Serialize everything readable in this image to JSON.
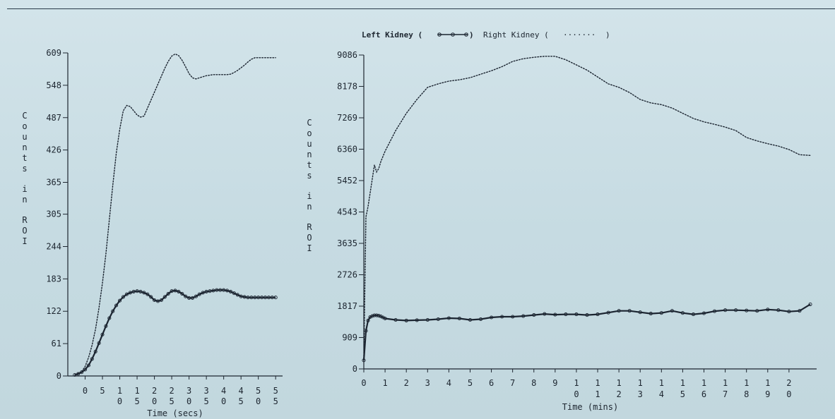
{
  "legend": {
    "left_label": "Left Kidney (",
    "left_close": ")",
    "right_label": "Right Kidney (",
    "right_symbol": "·······",
    "right_close": ")"
  },
  "colors": {
    "axis": "#1d2630",
    "left_kidney": "#1b2430",
    "right_kidney": "#1b2430",
    "background": "#c9dde4"
  },
  "chart_data": [
    {
      "type": "line",
      "xlabel": "Time (secs)",
      "ylabel": "Counts in ROI",
      "xlim": [
        -5,
        57
      ],
      "ylim": [
        0,
        609
      ],
      "yticks": [
        {
          "value": 0,
          "label": "0"
        },
        {
          "value": 61,
          "label": "61"
        },
        {
          "value": 122,
          "label": "122"
        },
        {
          "value": 183,
          "label": "183"
        },
        {
          "value": 244,
          "label": "244"
        },
        {
          "value": 305,
          "label": "305"
        },
        {
          "value": 365,
          "label": "365"
        },
        {
          "value": 426,
          "label": "426"
        },
        {
          "value": 487,
          "label": "487"
        },
        {
          "value": 548,
          "label": "548"
        },
        {
          "value": 609,
          "label": "609"
        }
      ],
      "xticks": [
        {
          "value": 0,
          "label": "0"
        },
        {
          "value": 5,
          "label": "5"
        },
        {
          "value": 10,
          "label": "10"
        },
        {
          "value": 15,
          "label": "15"
        },
        {
          "value": 20,
          "label": "20"
        },
        {
          "value": 25,
          "label": "25"
        },
        {
          "value": 30,
          "label": "30"
        },
        {
          "value": 35,
          "label": "35"
        },
        {
          "value": 40,
          "label": "40"
        },
        {
          "value": 45,
          "label": "45"
        },
        {
          "value": 50,
          "label": "50"
        },
        {
          "value": 55,
          "label": "55"
        }
      ],
      "series": [
        {
          "name": "Left Kidney",
          "style": "solid-markers",
          "x": [
            -3,
            -2,
            -1,
            0,
            1,
            2,
            3,
            4,
            5,
            6,
            7,
            8,
            9,
            10,
            11,
            12,
            13,
            14,
            15,
            16,
            17,
            18,
            19,
            20,
            21,
            22,
            23,
            24,
            25,
            26,
            27,
            28,
            29,
            30,
            31,
            32,
            33,
            34,
            35,
            36,
            37,
            38,
            39,
            40,
            41,
            42,
            43,
            44,
            45,
            46,
            47,
            48,
            49,
            50,
            51,
            52,
            53,
            54,
            55
          ],
          "y": [
            2,
            4,
            7,
            12,
            20,
            32,
            46,
            62,
            78,
            94,
            109,
            122,
            133,
            142,
            149,
            154,
            157,
            159,
            160,
            159,
            157,
            154,
            149,
            143,
            141,
            143,
            149,
            155,
            160,
            161,
            159,
            155,
            150,
            147,
            147,
            150,
            154,
            157,
            159,
            160,
            161,
            162,
            162,
            162,
            161,
            159,
            156,
            153,
            150,
            149,
            148,
            148,
            148,
            148,
            148,
            148,
            148,
            148,
            148
          ]
        },
        {
          "name": "Right Kidney",
          "style": "dotted",
          "x": [
            -3,
            -1,
            0,
            1,
            2,
            3,
            4,
            5,
            6,
            7,
            8,
            9,
            10,
            11,
            12,
            13,
            14,
            15,
            16,
            17,
            18,
            19,
            20,
            21,
            22,
            23,
            24,
            25,
            26,
            27,
            28,
            29,
            30,
            31,
            32,
            33,
            34,
            35,
            36,
            37,
            38,
            39,
            40,
            41,
            42,
            43,
            44,
            45,
            46,
            47,
            48,
            49,
            50,
            51,
            52,
            53,
            54,
            55
          ],
          "y": [
            2,
            8,
            18,
            35,
            58,
            88,
            128,
            175,
            230,
            295,
            360,
            420,
            465,
            500,
            510,
            508,
            500,
            492,
            488,
            490,
            505,
            520,
            535,
            550,
            565,
            580,
            593,
            603,
            607,
            604,
            595,
            583,
            570,
            562,
            560,
            562,
            564,
            566,
            567,
            568,
            568,
            568,
            568,
            568,
            569,
            572,
            576,
            581,
            586,
            592,
            597,
            600,
            600,
            600,
            600,
            600,
            600,
            600
          ]
        }
      ]
    },
    {
      "type": "line",
      "xlabel": "Time (mins)",
      "ylabel": "Counts in ROI",
      "xlim": [
        0,
        21.3
      ],
      "ylim": [
        0,
        9086
      ],
      "yticks": [
        {
          "value": 0,
          "label": "0"
        },
        {
          "value": 909,
          "label": "909"
        },
        {
          "value": 1817,
          "label": "1817"
        },
        {
          "value": 2726,
          "label": "2726"
        },
        {
          "value": 3635,
          "label": "3635"
        },
        {
          "value": 4543,
          "label": "4543"
        },
        {
          "value": 5452,
          "label": "5452"
        },
        {
          "value": 6360,
          "label": "6360"
        },
        {
          "value": 7269,
          "label": "7269"
        },
        {
          "value": 8178,
          "label": "8178"
        },
        {
          "value": 9086,
          "label": "9086"
        }
      ],
      "xticks": [
        {
          "value": 0,
          "label": "0"
        },
        {
          "value": 1,
          "label": "1"
        },
        {
          "value": 2,
          "label": "2"
        },
        {
          "value": 3,
          "label": "3"
        },
        {
          "value": 4,
          "label": "4"
        },
        {
          "value": 5,
          "label": "5"
        },
        {
          "value": 6,
          "label": "6"
        },
        {
          "value": 7,
          "label": "7"
        },
        {
          "value": 8,
          "label": "8"
        },
        {
          "value": 9,
          "label": "9"
        },
        {
          "value": 10,
          "label": "10"
        },
        {
          "value": 11,
          "label": "11"
        },
        {
          "value": 12,
          "label": "12"
        },
        {
          "value": 13,
          "label": "13"
        },
        {
          "value": 14,
          "label": "14"
        },
        {
          "value": 15,
          "label": "15"
        },
        {
          "value": 16,
          "label": "16"
        },
        {
          "value": 17,
          "label": "17"
        },
        {
          "value": 18,
          "label": "18"
        },
        {
          "value": 19,
          "label": "19"
        },
        {
          "value": 20,
          "label": "20"
        }
      ],
      "series": [
        {
          "name": "Left Kidney",
          "style": "solid-markers",
          "x": [
            0,
            0.1,
            0.2,
            0.3,
            0.4,
            0.5,
            0.6,
            0.7,
            0.8,
            0.9,
            1,
            1.5,
            2,
            2.5,
            3,
            3.5,
            4,
            4.5,
            5,
            5.5,
            6,
            6.5,
            7,
            7.5,
            8,
            8.5,
            9,
            9.5,
            10,
            10.5,
            11,
            11.5,
            12,
            12.5,
            13,
            13.5,
            14,
            14.5,
            15,
            15.5,
            16,
            16.5,
            17,
            17.5,
            18,
            18.5,
            19,
            19.5,
            20,
            20.5,
            21
          ],
          "y": [
            250,
            1100,
            1400,
            1500,
            1530,
            1550,
            1550,
            1540,
            1520,
            1490,
            1460,
            1420,
            1400,
            1410,
            1420,
            1440,
            1470,
            1460,
            1420,
            1440,
            1490,
            1510,
            1510,
            1530,
            1560,
            1590,
            1570,
            1580,
            1580,
            1560,
            1580,
            1630,
            1680,
            1680,
            1640,
            1600,
            1620,
            1680,
            1620,
            1580,
            1610,
            1670,
            1700,
            1700,
            1690,
            1680,
            1720,
            1700,
            1660,
            1680,
            1870
          ]
        },
        {
          "name": "Right Kidney",
          "style": "dotted",
          "x": [
            0,
            0.1,
            0.2,
            0.3,
            0.4,
            0.5,
            0.6,
            0.7,
            0.8,
            1,
            1.5,
            2,
            2.5,
            3,
            3.5,
            4,
            4.5,
            5,
            5.5,
            6,
            6.5,
            7,
            7.5,
            8,
            8.5,
            9,
            9.5,
            10,
            10.5,
            11,
            11.5,
            12,
            12.5,
            13,
            13.5,
            14,
            14.5,
            15,
            15.5,
            16,
            16.5,
            17,
            17.5,
            18,
            18.5,
            19,
            19.5,
            20,
            20.5,
            21
          ],
          "y": [
            300,
            4400,
            4700,
            5100,
            5500,
            5900,
            5700,
            5800,
            6000,
            6300,
            6900,
            7400,
            7800,
            8150,
            8250,
            8330,
            8370,
            8430,
            8530,
            8630,
            8750,
            8900,
            8980,
            9020,
            9050,
            9050,
            8950,
            8800,
            8650,
            8450,
            8250,
            8150,
            8000,
            7800,
            7700,
            7650,
            7550,
            7400,
            7250,
            7150,
            7080,
            7000,
            6900,
            6700,
            6600,
            6520,
            6450,
            6350,
            6200,
            6180
          ]
        }
      ]
    }
  ]
}
